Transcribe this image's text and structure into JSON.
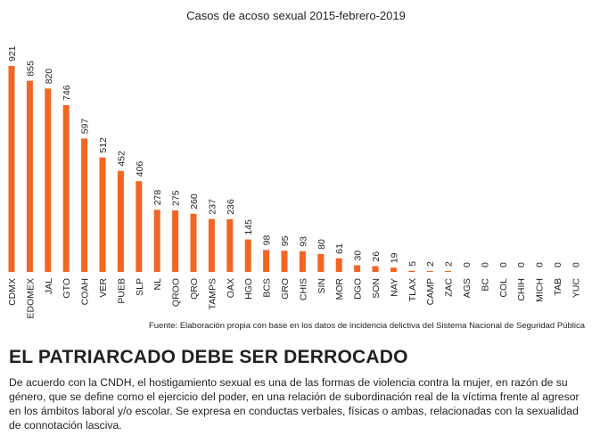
{
  "chart_data": {
    "type": "bar",
    "title": "Casos de acoso sexual 2015-febrero-2019",
    "categories": [
      "CDMX",
      "EDOMEX",
      "JAL",
      "GTO",
      "COAH",
      "VER",
      "PUEB",
      "SLP",
      "NL",
      "QROO",
      "QRO",
      "TAMPS",
      "OAX",
      "HGO",
      "BCS",
      "GRO",
      "CHIS",
      "SIN",
      "MOR",
      "DGO",
      "SON",
      "NAY",
      "TLAX",
      "CAMP",
      "ZAC",
      "AGS",
      "BC",
      "COL",
      "CHIH",
      "MICH",
      "TAB",
      "YUC"
    ],
    "values": [
      921,
      855,
      820,
      746,
      597,
      512,
      452,
      406,
      278,
      275,
      260,
      237,
      236,
      145,
      98,
      95,
      93,
      80,
      61,
      30,
      26,
      19,
      5,
      2,
      2,
      0,
      0,
      0,
      0,
      0,
      0,
      0
    ],
    "bar_color": "#f26522",
    "ylim": [
      0,
      921
    ],
    "grid": false,
    "xlabel": "",
    "ylabel": ""
  },
  "source": "Fuente: Elaboración propia con base  en los datos de incidencia delictiva del Sistema Nacional de Seguridad Pública",
  "headline": "EL PATRIARCADO DEBE SER DERROCADO",
  "body": "De acuerdo con la CNDH, el hostigamiento sexual es una de las formas de violencia contra la mujer, en razón de su género, que se define como el ejercicio del poder, en una relación de subordinación real de la víctima frente al agresor en los ámbitos laboral y/o escolar. Se expresa en conductas verbales, físicas o ambas, relacionadas con la sexualidad de connotación lasciva."
}
